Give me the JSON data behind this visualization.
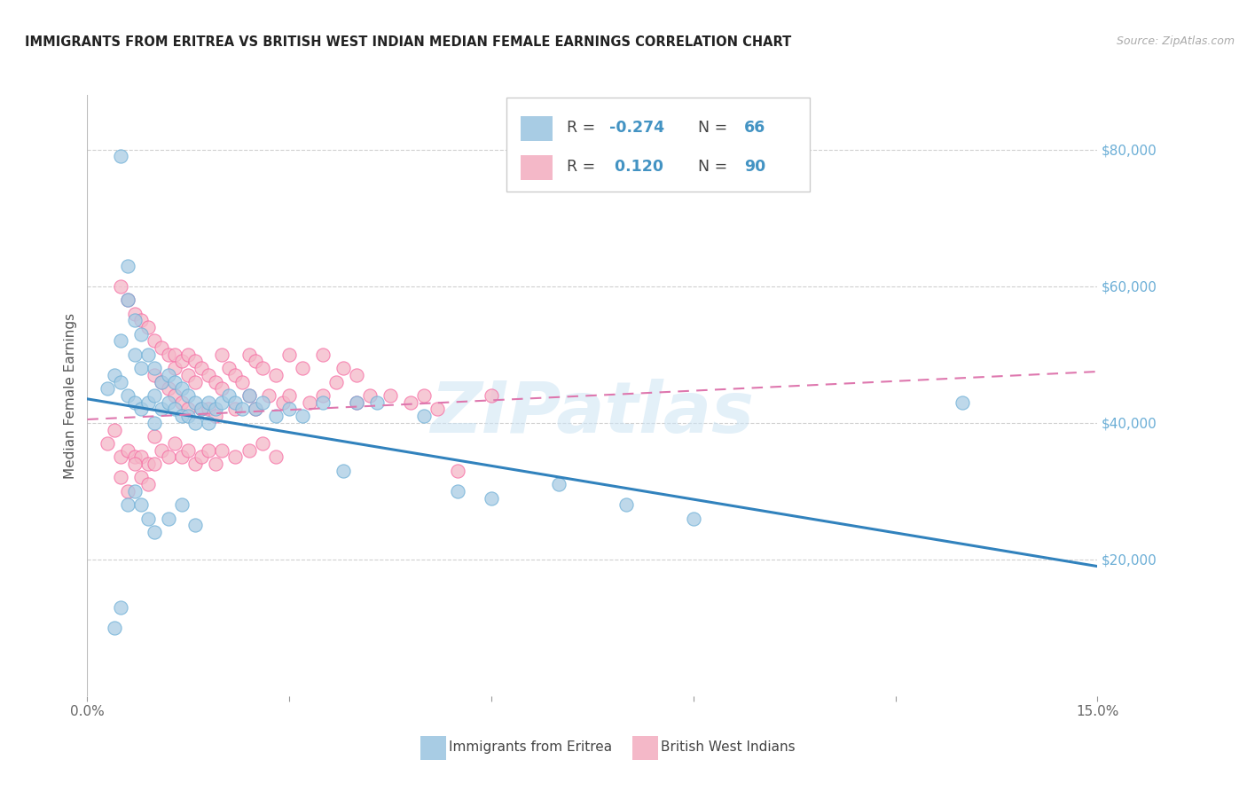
{
  "title": "IMMIGRANTS FROM ERITREA VS BRITISH WEST INDIAN MEDIAN FEMALE EARNINGS CORRELATION CHART",
  "source": "Source: ZipAtlas.com",
  "ylabel": "Median Female Earnings",
  "xlim": [
    0.0,
    0.15
  ],
  "ylim": [
    0,
    88000
  ],
  "xticks": [
    0.0,
    0.03,
    0.06,
    0.09,
    0.12,
    0.15
  ],
  "xticklabels": [
    "0.0%",
    "",
    "",
    "",
    "",
    "15.0%"
  ],
  "yticks": [
    20000,
    40000,
    60000,
    80000
  ],
  "yticklabels": [
    "$20,000",
    "$40,000",
    "$60,000",
    "$80,000"
  ],
  "background_color": "#ffffff",
  "grid_color": "#d0d0d0",
  "watermark": "ZIPatlas",
  "legend_label1": "Immigrants from Eritrea",
  "legend_label2": "British West Indians",
  "blue_color": "#a8cce4",
  "pink_color": "#f4b8c8",
  "blue_edge_color": "#6baed6",
  "pink_edge_color": "#f768a1",
  "blue_line_color": "#3182bd",
  "pink_line_color": "#de77ae",
  "blue_trend_x": [
    0.0,
    0.15
  ],
  "blue_trend_y": [
    43500,
    19000
  ],
  "pink_trend_x": [
    0.0,
    0.15
  ],
  "pink_trend_y": [
    40500,
    47500
  ],
  "blue_pts_x": [
    0.003,
    0.004,
    0.005,
    0.005,
    0.005,
    0.006,
    0.006,
    0.006,
    0.007,
    0.007,
    0.007,
    0.008,
    0.008,
    0.008,
    0.009,
    0.009,
    0.01,
    0.01,
    0.01,
    0.011,
    0.011,
    0.012,
    0.012,
    0.013,
    0.013,
    0.014,
    0.014,
    0.015,
    0.015,
    0.016,
    0.016,
    0.017,
    0.018,
    0.018,
    0.019,
    0.02,
    0.021,
    0.022,
    0.023,
    0.024,
    0.025,
    0.026,
    0.028,
    0.03,
    0.032,
    0.035,
    0.038,
    0.04,
    0.043,
    0.05,
    0.055,
    0.06,
    0.07,
    0.08,
    0.09,
    0.13,
    0.004,
    0.005,
    0.006,
    0.007,
    0.008,
    0.009,
    0.01,
    0.012,
    0.014,
    0.016
  ],
  "blue_pts_y": [
    45000,
    47000,
    79000,
    52000,
    46000,
    63000,
    58000,
    44000,
    55000,
    50000,
    43000,
    53000,
    48000,
    42000,
    50000,
    43000,
    48000,
    44000,
    40000,
    46000,
    42000,
    47000,
    43000,
    46000,
    42000,
    45000,
    41000,
    44000,
    41000,
    43000,
    40000,
    42000,
    43000,
    40000,
    42000,
    43000,
    44000,
    43000,
    42000,
    44000,
    42000,
    43000,
    41000,
    42000,
    41000,
    43000,
    33000,
    43000,
    43000,
    41000,
    30000,
    29000,
    31000,
    28000,
    26000,
    43000,
    10000,
    13000,
    28000,
    30000,
    28000,
    26000,
    24000,
    26000,
    28000,
    25000
  ],
  "pink_pts_x": [
    0.003,
    0.004,
    0.005,
    0.005,
    0.006,
    0.006,
    0.007,
    0.007,
    0.008,
    0.008,
    0.009,
    0.009,
    0.01,
    0.01,
    0.01,
    0.011,
    0.011,
    0.012,
    0.012,
    0.013,
    0.013,
    0.013,
    0.014,
    0.014,
    0.015,
    0.015,
    0.015,
    0.016,
    0.016,
    0.017,
    0.017,
    0.018,
    0.018,
    0.019,
    0.019,
    0.02,
    0.02,
    0.021,
    0.022,
    0.022,
    0.023,
    0.024,
    0.024,
    0.025,
    0.025,
    0.026,
    0.027,
    0.028,
    0.029,
    0.03,
    0.03,
    0.032,
    0.033,
    0.035,
    0.035,
    0.037,
    0.038,
    0.04,
    0.04,
    0.042,
    0.045,
    0.048,
    0.05,
    0.052,
    0.055,
    0.06,
    0.005,
    0.006,
    0.007,
    0.008,
    0.009,
    0.01,
    0.011,
    0.012,
    0.013,
    0.014,
    0.015,
    0.016,
    0.017,
    0.018,
    0.019,
    0.02,
    0.022,
    0.024,
    0.026,
    0.028
  ],
  "pink_pts_y": [
    37000,
    39000,
    60000,
    35000,
    58000,
    36000,
    56000,
    35000,
    55000,
    35000,
    54000,
    34000,
    52000,
    47000,
    34000,
    51000,
    46000,
    50000,
    45000,
    50000,
    48000,
    44000,
    49000,
    43000,
    50000,
    47000,
    42000,
    49000,
    46000,
    48000,
    42000,
    47000,
    42000,
    46000,
    41000,
    50000,
    45000,
    48000,
    47000,
    42000,
    46000,
    50000,
    44000,
    49000,
    42000,
    48000,
    44000,
    47000,
    43000,
    50000,
    44000,
    48000,
    43000,
    50000,
    44000,
    46000,
    48000,
    47000,
    43000,
    44000,
    44000,
    43000,
    44000,
    42000,
    33000,
    44000,
    32000,
    30000,
    34000,
    32000,
    31000,
    38000,
    36000,
    35000,
    37000,
    35000,
    36000,
    34000,
    35000,
    36000,
    34000,
    36000,
    35000,
    36000,
    37000,
    35000
  ]
}
